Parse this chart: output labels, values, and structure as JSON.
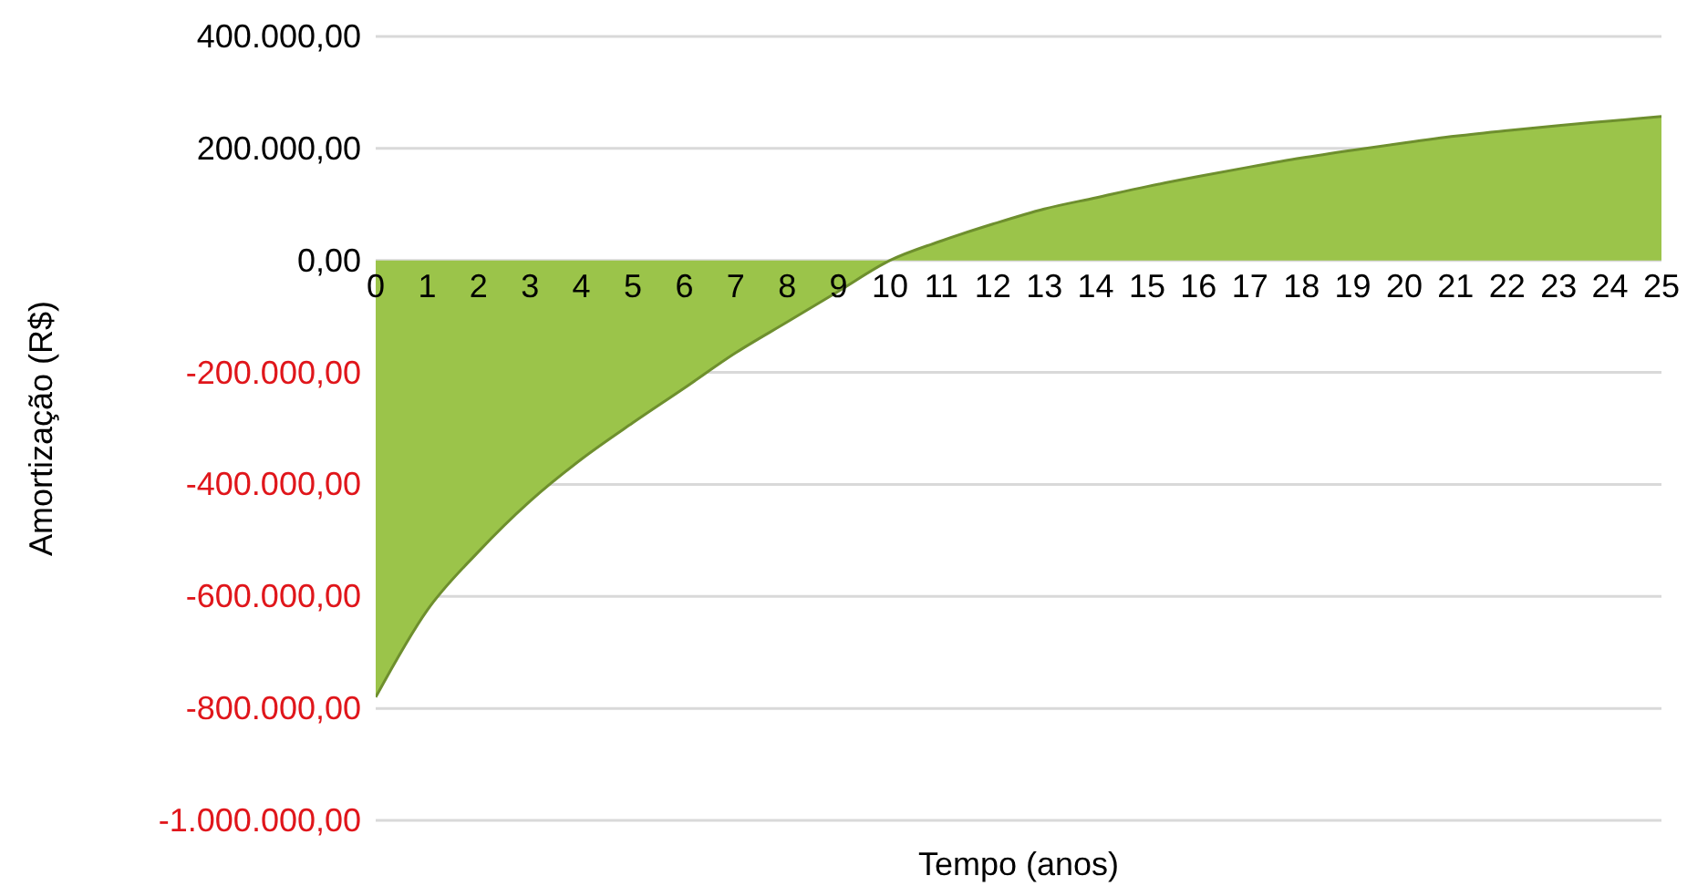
{
  "chart_data": {
    "type": "area",
    "xlabel": "Tempo (anos)",
    "ylabel": "Amortização (R$)",
    "x": [
      0,
      1,
      2,
      3,
      4,
      5,
      6,
      7,
      8,
      9,
      10,
      11,
      12,
      13,
      14,
      15,
      16,
      17,
      18,
      19,
      20,
      21,
      22,
      23,
      24,
      25
    ],
    "series": [
      {
        "color": "#9bc44a",
        "values": [
          -780000,
          -625000,
          -520000,
          -430000,
          -355000,
          -290000,
          -228000,
          -165000,
          -110000,
          -55000,
          0,
          35000,
          65000,
          92000,
          112000,
          132000,
          150000,
          167000,
          183000,
          197000,
          210000,
          222000,
          232000,
          241000,
          249000,
          257000
        ]
      }
    ],
    "xlim": [
      0,
      25
    ],
    "xticks": [
      0,
      1,
      2,
      3,
      4,
      5,
      6,
      7,
      8,
      9,
      10,
      11,
      12,
      13,
      14,
      15,
      16,
      17,
      18,
      19,
      20,
      21,
      22,
      23,
      24,
      25
    ],
    "ylim": [
      -1000000,
      400000
    ],
    "yticks": [
      {
        "value": -1000000,
        "label": "-1.000.000,00"
      },
      {
        "value": -800000,
        "label": "-800.000,00"
      },
      {
        "value": -600000,
        "label": "-600.000,00"
      },
      {
        "value": -400000,
        "label": "-400.000,00"
      },
      {
        "value": -200000,
        "label": "-200.000,00"
      },
      {
        "value": 0,
        "label": "0,00"
      },
      {
        "value": 200000,
        "label": "200.000,00"
      },
      {
        "value": 400000,
        "label": "400.000,00"
      }
    ],
    "grid": "y",
    "legend": false
  }
}
